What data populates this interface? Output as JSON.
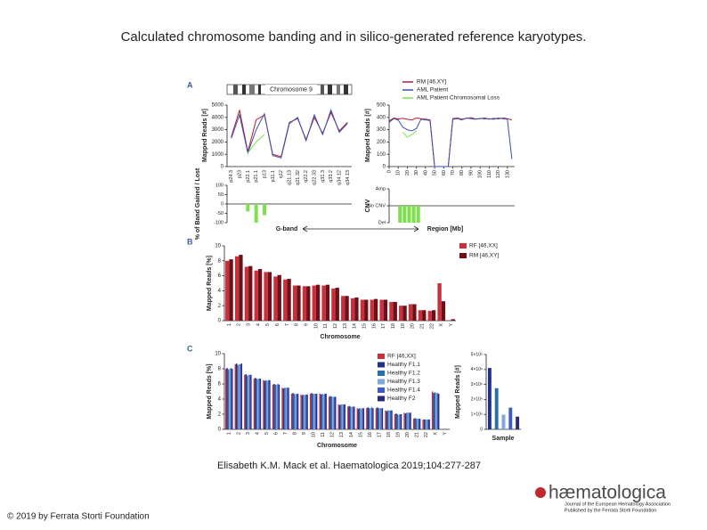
{
  "slide": {
    "title": "Calculated chromosome banding and in silico-generated reference karyotypes.",
    "citation": "Elisabeth K.M. Mack et al. Haematologica 2019;104:277-287",
    "copyright": "© 2019 by Ferrata Storti Foundation",
    "logo": {
      "name": "hæmatologica",
      "tagline_1": "Journal of the European Hematology Association",
      "tagline_2": "Published by the Ferrata Storti Foundation"
    }
  },
  "figure": {
    "a": {
      "label": "A",
      "band_chart": {
        "type": "line",
        "title": "Chromosome 9",
        "y_label": "Mapped Reads [#]",
        "categories": [
          "p24.3",
          "p23",
          "p22.1",
          "p21.1",
          "p13",
          "p11.1",
          "q12",
          "q21.13",
          "q21.32",
          "q22.2",
          "q22.33",
          "q31.3",
          "q33.2",
          "q34.12",
          "q34.13"
        ],
        "ylim": [
          0,
          5000
        ],
        "yticks": [
          0,
          1000,
          2000,
          3000,
          4000,
          5000
        ],
        "series": [
          {
            "name": "RM [46,XY]",
            "color": "#b01c2e",
            "values": [
              2400,
              4600,
              1200,
              3800,
              4200,
              1000,
              800,
              3600,
              3900,
              2200,
              4000,
              2700,
              4400,
              2900,
              3600
            ]
          },
          {
            "name": "AML Patient",
            "color": "#3b4fb0",
            "values": [
              2300,
              4200,
              1100,
              3000,
              4300,
              900,
              700,
              3500,
              4000,
              2100,
              4200,
              2600,
              4600,
              2800,
              3500
            ]
          },
          {
            "name": "AML Patient Chromosomal Loss",
            "color": "#7ee04f",
            "values": [
              null,
              null,
              1100,
              2000,
              2600,
              null,
              null,
              null,
              null,
              null,
              null,
              null,
              null,
              null,
              null
            ]
          }
        ]
      },
      "region_chart": {
        "type": "line",
        "y_label": "Mapped Reads [#]",
        "x": [
          0,
          5,
          10,
          15,
          20,
          25,
          30,
          35,
          40,
          45,
          50,
          55,
          60,
          65,
          70,
          75,
          80,
          85,
          90,
          95,
          100,
          105,
          110,
          115,
          120,
          125,
          130,
          135
        ],
        "xlim": [
          0,
          138
        ],
        "xticks": [
          0,
          10,
          20,
          30,
          40,
          50,
          60,
          70,
          80,
          90,
          100,
          110,
          120,
          130
        ],
        "ylim": [
          0,
          500
        ],
        "yticks": [
          0,
          100,
          200,
          300,
          400,
          500
        ],
        "series": [
          {
            "name": "RM [46,XY]",
            "color": "#b01c2e",
            "values": [
              370,
              395,
              388,
              392,
              385,
              380,
              395,
              390,
              385,
              380,
              0,
              0,
              0,
              0,
              390,
              395,
              385,
              392,
              398,
              388,
              390,
              395,
              385,
              392,
              388,
              395,
              390,
              380
            ]
          },
          {
            "name": "AML Patient",
            "color": "#3b4fb0",
            "values": [
              360,
              390,
              380,
              320,
              300,
              290,
              310,
              385,
              380,
              375,
              0,
              0,
              0,
              0,
              385,
              390,
              380,
              395,
              390,
              385,
              392,
              388,
              390,
              385,
              395,
              390,
              385,
              60
            ]
          },
          {
            "name": "AML Patient Chromosomal Loss",
            "color": "#7ee04f",
            "values": [
              null,
              null,
              null,
              280,
              240,
              260,
              290,
              null,
              null,
              null,
              null,
              null,
              null,
              null,
              null,
              null,
              null,
              null,
              null,
              null,
              null,
              null,
              null,
              null,
              null,
              null,
              null,
              null
            ]
          }
        ]
      },
      "band_change": {
        "type": "bar",
        "y_label": "% of Band Gained / Lost",
        "x_label": "G-band",
        "color": "#7ee04f",
        "values": [
          0,
          0,
          -40,
          -100,
          -60,
          0,
          0,
          0,
          0,
          0,
          0,
          0,
          0,
          0,
          0
        ],
        "ylim": [
          -100,
          100
        ],
        "yticks": [
          -100,
          -50,
          0,
          50,
          100
        ]
      },
      "cnv": {
        "type": "bar",
        "y_label": "CNV",
        "x_label": "Region [Mb]",
        "color": "#7ee04f",
        "x": [
          0,
          5,
          10,
          15,
          20,
          25,
          30,
          35,
          40,
          45,
          50,
          55,
          60,
          65,
          70,
          75,
          80,
          85,
          90,
          95,
          100,
          105,
          110,
          115,
          120,
          125,
          130,
          135
        ],
        "values": [
          0,
          0,
          -1,
          -1,
          -1,
          -1,
          -1,
          0,
          0,
          0,
          0,
          0,
          0,
          0,
          0,
          0,
          0,
          0,
          0,
          0,
          0,
          0,
          0,
          0,
          0,
          0,
          0,
          0
        ],
        "ylim": [
          -1,
          1
        ],
        "yticks": [
          {
            "value": -1,
            "label": "Del"
          },
          {
            "value": 0,
            "label": "No CNV"
          },
          {
            "value": 1,
            "label": "Amp"
          }
        ]
      }
    },
    "b": {
      "label": "B",
      "type": "bar",
      "y_label": "Mapped Reads [%]",
      "x_label": "Chromosome",
      "categories": [
        "1",
        "2",
        "3",
        "4",
        "5",
        "6",
        "7",
        "8",
        "9",
        "10",
        "11",
        "12",
        "13",
        "14",
        "15",
        "16",
        "17",
        "18",
        "19",
        "20",
        "21",
        "22",
        "X",
        "Y"
      ],
      "ylim": [
        0,
        10
      ],
      "yticks": [
        0,
        2,
        4,
        6,
        8,
        10
      ],
      "series": [
        {
          "name": "RF [46,XX]",
          "color": "#c8303c",
          "values": [
            8.0,
            8.6,
            7.2,
            6.7,
            6.5,
            5.9,
            5.5,
            4.7,
            4.6,
            4.7,
            4.7,
            4.3,
            3.3,
            3.0,
            2.8,
            2.8,
            2.8,
            2.5,
            2.0,
            2.2,
            1.4,
            1.3,
            5.0,
            0
          ]
        },
        {
          "name": "RM [46,XY]",
          "color": "#6e1018",
          "values": [
            8.2,
            8.8,
            7.3,
            6.9,
            6.5,
            6.1,
            5.6,
            4.7,
            4.6,
            4.8,
            4.8,
            4.4,
            3.3,
            3.1,
            2.8,
            2.9,
            2.8,
            2.5,
            2.0,
            2.2,
            1.4,
            1.4,
            2.6,
            0.2
          ]
        }
      ]
    },
    "c": {
      "label": "C",
      "type": "bar",
      "y_label": "Mapped Reads [%]",
      "x_label": "Chromosome",
      "categories": [
        "1",
        "2",
        "3",
        "4",
        "5",
        "6",
        "7",
        "8",
        "9",
        "10",
        "11",
        "12",
        "13",
        "14",
        "15",
        "16",
        "17",
        "18",
        "19",
        "20",
        "21",
        "22",
        "X",
        "Y"
      ],
      "ylim": [
        0,
        10
      ],
      "yticks": [
        0,
        2,
        4,
        6,
        8,
        10
      ],
      "series": [
        {
          "name": "RF [46,XX]",
          "color": "#c8303c",
          "values": [
            8.0,
            8.6,
            7.2,
            6.7,
            6.5,
            5.9,
            5.5,
            4.7,
            4.6,
            4.7,
            4.7,
            4.3,
            3.3,
            3.0,
            2.8,
            2.8,
            2.8,
            2.5,
            2.0,
            2.2,
            1.4,
            1.3,
            5.0,
            0
          ]
        },
        {
          "name": "Healthy F1.1",
          "color": "#1f2f8a",
          "values": [
            8.1,
            8.7,
            7.3,
            6.8,
            6.4,
            6.0,
            5.4,
            4.8,
            4.5,
            4.8,
            4.6,
            4.4,
            3.2,
            3.1,
            2.7,
            2.9,
            2.9,
            2.4,
            2.1,
            2.1,
            1.5,
            1.3,
            4.8,
            0
          ]
        },
        {
          "name": "Healthy F1.2",
          "color": "#2a6fa8",
          "values": [
            7.9,
            8.5,
            7.1,
            6.7,
            6.5,
            5.9,
            5.5,
            4.7,
            4.6,
            4.7,
            4.7,
            4.3,
            3.3,
            3.0,
            2.8,
            2.8,
            2.8,
            2.5,
            2.0,
            2.2,
            1.4,
            1.3,
            4.9,
            0
          ]
        },
        {
          "name": "Healthy F1.3",
          "color": "#7fa7d8",
          "values": [
            8.0,
            8.6,
            7.2,
            6.6,
            6.4,
            5.9,
            5.5,
            4.6,
            4.5,
            4.7,
            4.6,
            4.3,
            3.3,
            3.0,
            2.7,
            2.8,
            2.8,
            2.5,
            1.9,
            2.2,
            1.4,
            1.3,
            4.8,
            0
          ]
        },
        {
          "name": "Healthy F1.4",
          "color": "#3d5ccc",
          "values": [
            8.1,
            8.6,
            7.2,
            6.7,
            6.5,
            6.0,
            5.5,
            4.7,
            4.6,
            4.7,
            4.7,
            4.3,
            3.3,
            3.0,
            2.8,
            2.9,
            2.8,
            2.5,
            2.0,
            2.2,
            1.4,
            1.3,
            4.8,
            0
          ]
        },
        {
          "name": "Healthy F2",
          "color": "#2a2a7a",
          "values": [
            8.0,
            8.7,
            7.2,
            6.7,
            6.5,
            5.9,
            5.5,
            4.7,
            4.6,
            4.7,
            4.7,
            4.3,
            3.3,
            3.0,
            2.8,
            2.8,
            2.8,
            2.5,
            2.0,
            2.2,
            1.4,
            1.3,
            4.7,
            0
          ]
        }
      ],
      "inset": {
        "type": "bar",
        "y_label": "Mapped Reads [#]",
        "x_label": "Sample",
        "values": [
          4100000,
          2750000,
          980000,
          1450000,
          850000
        ],
        "colors": [
          "#1f2f8a",
          "#2a6fa8",
          "#7fa7d8",
          "#3d5ccc",
          "#2a2a7a"
        ],
        "ylim": [
          0,
          5000000
        ],
        "yticks": [
          0,
          {
            "value": 1000000,
            "label": "1×10⁶"
          },
          {
            "value": 2000000,
            "label": "2×10⁶"
          },
          {
            "value": 3000000,
            "label": "3×10⁶"
          },
          {
            "value": 4000000,
            "label": "4×10⁶"
          },
          {
            "value": 5000000,
            "label": "5×10⁶"
          }
        ]
      }
    }
  }
}
